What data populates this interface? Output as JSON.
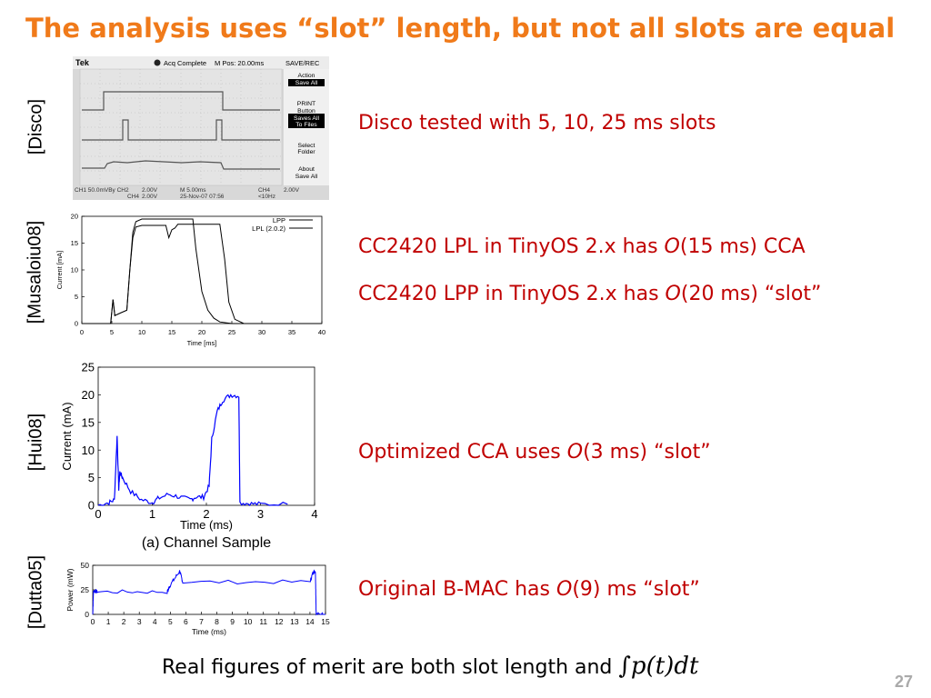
{
  "slide": {
    "title": "The analysis uses “slot” length, but not all slots are equal",
    "page_number": "27",
    "footer": {
      "text": "Real figures of merit are both slot length and ",
      "formula": "∫p(t)dt"
    }
  },
  "citations": [
    "[Disco]",
    "[Musaloiu08]",
    "[Hui08]",
    "[Dutta05]"
  ],
  "bullets": {
    "disco": "Disco tested with 5, 10, 25 ms slots",
    "lpl": {
      "pre": "CC2420 LPL in TinyOS 2.x has ",
      "o": "O",
      "post": "(15 ms) CCA"
    },
    "lpp": {
      "pre": "CC2420 LPP in TinyOS 2.x has ",
      "o": "O",
      "post": "(20 ms) “slot”"
    },
    "cca": {
      "pre": "Optimized CCA uses ",
      "o": "O",
      "post": "(3 ms) “slot”"
    },
    "bmac": {
      "pre": "Original B-MAC has ",
      "o": "O",
      "post": "(9) ms “slot”"
    }
  },
  "colors": {
    "title": "#f07a1a",
    "bullet": "#c00000",
    "trace_blue": "#0000ff",
    "scope_bg": "#d8d8d8"
  },
  "scope": {
    "brand": "Tek",
    "status": "Acq Complete",
    "mpos": "M Pos: 20.00ms",
    "save_rec": "SAVE/REC",
    "menu": [
      [
        "Action",
        "Save All"
      ],
      [
        "PRINT",
        "Button",
        "Saves All",
        "To Files"
      ],
      [
        "Select",
        "Folder"
      ],
      [
        "About",
        "Save All"
      ]
    ],
    "footer_row1": [
      "CH1  50.0mVBy CH2",
      "2.00V",
      "M 5.00ms",
      "CH4",
      "2.00V"
    ],
    "footer_row2": [
      "CH4",
      "2.00V",
      "25-Nov-07 07:56",
      "<10Hz"
    ]
  },
  "chart_data": [
    {
      "type": "line",
      "id": "musaloiu",
      "xlabel": "Time [ms]",
      "ylabel": "Current [mA]",
      "xlim": [
        0,
        40
      ],
      "ylim": [
        0,
        20
      ],
      "xticks": [
        0,
        5,
        10,
        15,
        20,
        25,
        30,
        35,
        40
      ],
      "yticks": [
        0,
        5,
        10,
        15,
        20
      ],
      "legend": "top-right",
      "series": [
        {
          "name": "LPP",
          "x": [
            0,
            4.8,
            5.2,
            5.5,
            6.5,
            7.5,
            8,
            8.5,
            9,
            10,
            18.5,
            19,
            20,
            21,
            22,
            23,
            25,
            40
          ],
          "y": [
            0,
            0,
            4.5,
            1.5,
            2,
            2.5,
            10,
            17,
            19,
            19.5,
            19.5,
            14,
            6,
            2.5,
            1,
            0.3,
            0,
            0
          ]
        },
        {
          "name": "LPL (2.0.2)",
          "x": [
            0,
            4.8,
            5.2,
            5.5,
            6.5,
            7.5,
            8,
            8.5,
            9,
            10,
            14,
            14.5,
            15,
            15.5,
            16,
            23,
            23.8,
            24.5,
            25.5,
            27,
            40
          ],
          "y": [
            0,
            0,
            4.5,
            1.5,
            2,
            2.5,
            10,
            16,
            18,
            18.3,
            18.3,
            16,
            17.5,
            17.8,
            18.5,
            18.5,
            12,
            4,
            0.8,
            0,
            0
          ]
        }
      ]
    },
    {
      "type": "line",
      "id": "hui",
      "xlabel": "Time (ms)",
      "ylabel": "Current (mA)",
      "caption": "(a) Channel Sample",
      "xlim": [
        0,
        4
      ],
      "ylim": [
        0,
        25
      ],
      "xticks": [
        0,
        1,
        2,
        3,
        4
      ],
      "yticks": [
        0,
        5,
        10,
        15,
        20,
        25
      ],
      "series": [
        {
          "x": [
            0,
            0.2,
            0.3,
            0.35,
            0.38,
            0.4,
            0.45,
            0.6,
            0.8,
            1.0,
            1.1,
            1.3,
            1.5,
            1.7,
            1.8,
            1.95,
            2.05,
            2.1,
            2.2,
            2.3,
            2.45,
            2.6,
            2.62,
            2.8,
            3.0,
            3.5
          ],
          "y": [
            0,
            0.5,
            1,
            12.5,
            3,
            6,
            5,
            2.5,
            1,
            0.5,
            1.2,
            2,
            1.5,
            1,
            1.5,
            1.5,
            3.5,
            12,
            17,
            19,
            20,
            19.8,
            0.5,
            0.3,
            0.2,
            0.2
          ]
        }
      ]
    },
    {
      "type": "line",
      "id": "dutta",
      "xlabel": "Time (ms)",
      "ylabel": "Power (mW)",
      "xlim": [
        0,
        15
      ],
      "ylim": [
        0,
        50
      ],
      "xticks": [
        0,
        1,
        2,
        3,
        4,
        5,
        6,
        7,
        8,
        9,
        10,
        11,
        12,
        13,
        14,
        15
      ],
      "yticks": [
        0,
        25,
        50
      ],
      "series": [
        {
          "x": [
            0,
            0.05,
            0.3,
            4.8,
            5.0,
            5.6,
            5.8,
            14.0,
            14.2,
            14.35,
            14.4,
            15
          ],
          "y": [
            0,
            24,
            23,
            23,
            30,
            44,
            33,
            33,
            43,
            44,
            0,
            0
          ]
        }
      ]
    }
  ]
}
